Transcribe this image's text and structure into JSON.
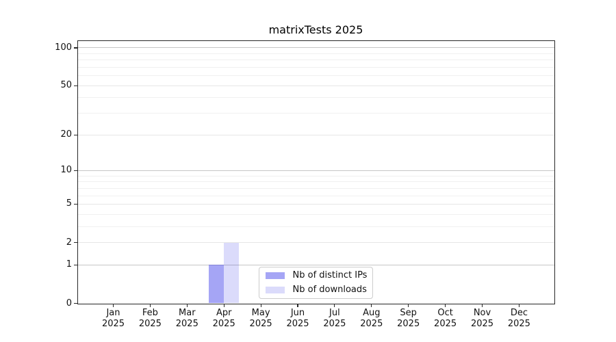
{
  "title": "matrixTests 2025",
  "chart_data": {
    "type": "bar",
    "title": "matrixTests 2025",
    "scale": "log1p",
    "grid": true,
    "categories": [
      "Jan",
      "Feb",
      "Mar",
      "Apr",
      "May",
      "Jun",
      "Jul",
      "Aug",
      "Sep",
      "Oct",
      "Nov",
      "Dec"
    ],
    "year_label": "2025",
    "series": [
      {
        "name": "Nb of distinct IPs",
        "color": "rgba(40,40,230,0.42)",
        "values": [
          0,
          0,
          0,
          1,
          0,
          0,
          0,
          0,
          0,
          0,
          0,
          0
        ]
      },
      {
        "name": "Nb of downloads",
        "color": "rgba(40,40,230,0.17)",
        "values": [
          0,
          0,
          0,
          2,
          0,
          0,
          0,
          0,
          0,
          0,
          0,
          0
        ]
      }
    ],
    "y_major_ticks": [
      0,
      1,
      2,
      5,
      10,
      20,
      50,
      100
    ],
    "y_decade_ticks": [
      1,
      10,
      100
    ],
    "y_minor_gridlines": [
      3,
      4,
      6,
      7,
      8,
      9,
      30,
      40,
      60,
      70,
      80,
      90
    ],
    "ylim": [
      0,
      100
    ],
    "legend_position": "lower-center"
  }
}
